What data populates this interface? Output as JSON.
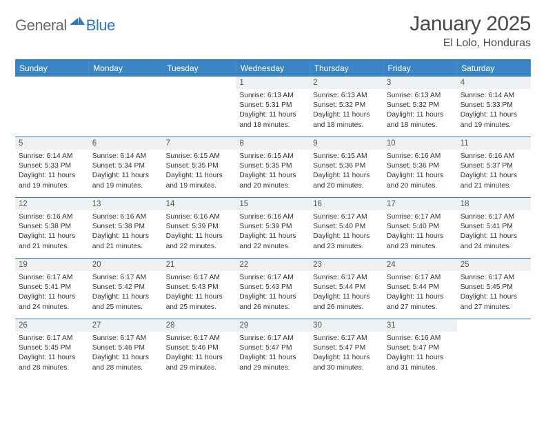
{
  "logo": {
    "word1": "General",
    "word2": "Blue"
  },
  "header": {
    "title": "January 2025",
    "location": "El Lolo, Honduras"
  },
  "colors": {
    "brand_blue": "#2e79b8",
    "header_row_bg": "#3a86c5",
    "header_row_fg": "#ffffff",
    "daynum_bg": "#eef0f2",
    "text": "#333333",
    "logo_grey": "#6a6a6a",
    "title_grey": "#4a4a4a"
  },
  "weekdays": [
    "Sunday",
    "Monday",
    "Tuesday",
    "Wednesday",
    "Thursday",
    "Friday",
    "Saturday"
  ],
  "labels": {
    "sunrise": "Sunrise: ",
    "sunset": "Sunset: ",
    "daylight": "Daylight: "
  },
  "grid": [
    [
      {
        "empty": true
      },
      {
        "empty": true
      },
      {
        "empty": true
      },
      {
        "day": "1",
        "sunrise": "6:13 AM",
        "sunset": "5:31 PM",
        "daylight": "11 hours and 18 minutes."
      },
      {
        "day": "2",
        "sunrise": "6:13 AM",
        "sunset": "5:32 PM",
        "daylight": "11 hours and 18 minutes."
      },
      {
        "day": "3",
        "sunrise": "6:13 AM",
        "sunset": "5:32 PM",
        "daylight": "11 hours and 18 minutes."
      },
      {
        "day": "4",
        "sunrise": "6:14 AM",
        "sunset": "5:33 PM",
        "daylight": "11 hours and 19 minutes."
      }
    ],
    [
      {
        "day": "5",
        "sunrise": "6:14 AM",
        "sunset": "5:33 PM",
        "daylight": "11 hours and 19 minutes."
      },
      {
        "day": "6",
        "sunrise": "6:14 AM",
        "sunset": "5:34 PM",
        "daylight": "11 hours and 19 minutes."
      },
      {
        "day": "7",
        "sunrise": "6:15 AM",
        "sunset": "5:35 PM",
        "daylight": "11 hours and 19 minutes."
      },
      {
        "day": "8",
        "sunrise": "6:15 AM",
        "sunset": "5:35 PM",
        "daylight": "11 hours and 20 minutes."
      },
      {
        "day": "9",
        "sunrise": "6:15 AM",
        "sunset": "5:36 PM",
        "daylight": "11 hours and 20 minutes."
      },
      {
        "day": "10",
        "sunrise": "6:16 AM",
        "sunset": "5:36 PM",
        "daylight": "11 hours and 20 minutes."
      },
      {
        "day": "11",
        "sunrise": "6:16 AM",
        "sunset": "5:37 PM",
        "daylight": "11 hours and 21 minutes."
      }
    ],
    [
      {
        "day": "12",
        "sunrise": "6:16 AM",
        "sunset": "5:38 PM",
        "daylight": "11 hours and 21 minutes."
      },
      {
        "day": "13",
        "sunrise": "6:16 AM",
        "sunset": "5:38 PM",
        "daylight": "11 hours and 21 minutes."
      },
      {
        "day": "14",
        "sunrise": "6:16 AM",
        "sunset": "5:39 PM",
        "daylight": "11 hours and 22 minutes."
      },
      {
        "day": "15",
        "sunrise": "6:16 AM",
        "sunset": "5:39 PM",
        "daylight": "11 hours and 22 minutes."
      },
      {
        "day": "16",
        "sunrise": "6:17 AM",
        "sunset": "5:40 PM",
        "daylight": "11 hours and 23 minutes."
      },
      {
        "day": "17",
        "sunrise": "6:17 AM",
        "sunset": "5:40 PM",
        "daylight": "11 hours and 23 minutes."
      },
      {
        "day": "18",
        "sunrise": "6:17 AM",
        "sunset": "5:41 PM",
        "daylight": "11 hours and 24 minutes."
      }
    ],
    [
      {
        "day": "19",
        "sunrise": "6:17 AM",
        "sunset": "5:41 PM",
        "daylight": "11 hours and 24 minutes."
      },
      {
        "day": "20",
        "sunrise": "6:17 AM",
        "sunset": "5:42 PM",
        "daylight": "11 hours and 25 minutes."
      },
      {
        "day": "21",
        "sunrise": "6:17 AM",
        "sunset": "5:43 PM",
        "daylight": "11 hours and 25 minutes."
      },
      {
        "day": "22",
        "sunrise": "6:17 AM",
        "sunset": "5:43 PM",
        "daylight": "11 hours and 26 minutes."
      },
      {
        "day": "23",
        "sunrise": "6:17 AM",
        "sunset": "5:44 PM",
        "daylight": "11 hours and 26 minutes."
      },
      {
        "day": "24",
        "sunrise": "6:17 AM",
        "sunset": "5:44 PM",
        "daylight": "11 hours and 27 minutes."
      },
      {
        "day": "25",
        "sunrise": "6:17 AM",
        "sunset": "5:45 PM",
        "daylight": "11 hours and 27 minutes."
      }
    ],
    [
      {
        "day": "26",
        "sunrise": "6:17 AM",
        "sunset": "5:45 PM",
        "daylight": "11 hours and 28 minutes."
      },
      {
        "day": "27",
        "sunrise": "6:17 AM",
        "sunset": "5:46 PM",
        "daylight": "11 hours and 28 minutes."
      },
      {
        "day": "28",
        "sunrise": "6:17 AM",
        "sunset": "5:46 PM",
        "daylight": "11 hours and 29 minutes."
      },
      {
        "day": "29",
        "sunrise": "6:17 AM",
        "sunset": "5:47 PM",
        "daylight": "11 hours and 29 minutes."
      },
      {
        "day": "30",
        "sunrise": "6:17 AM",
        "sunset": "5:47 PM",
        "daylight": "11 hours and 30 minutes."
      },
      {
        "day": "31",
        "sunrise": "6:16 AM",
        "sunset": "5:47 PM",
        "daylight": "11 hours and 31 minutes."
      },
      {
        "empty": true
      }
    ]
  ]
}
